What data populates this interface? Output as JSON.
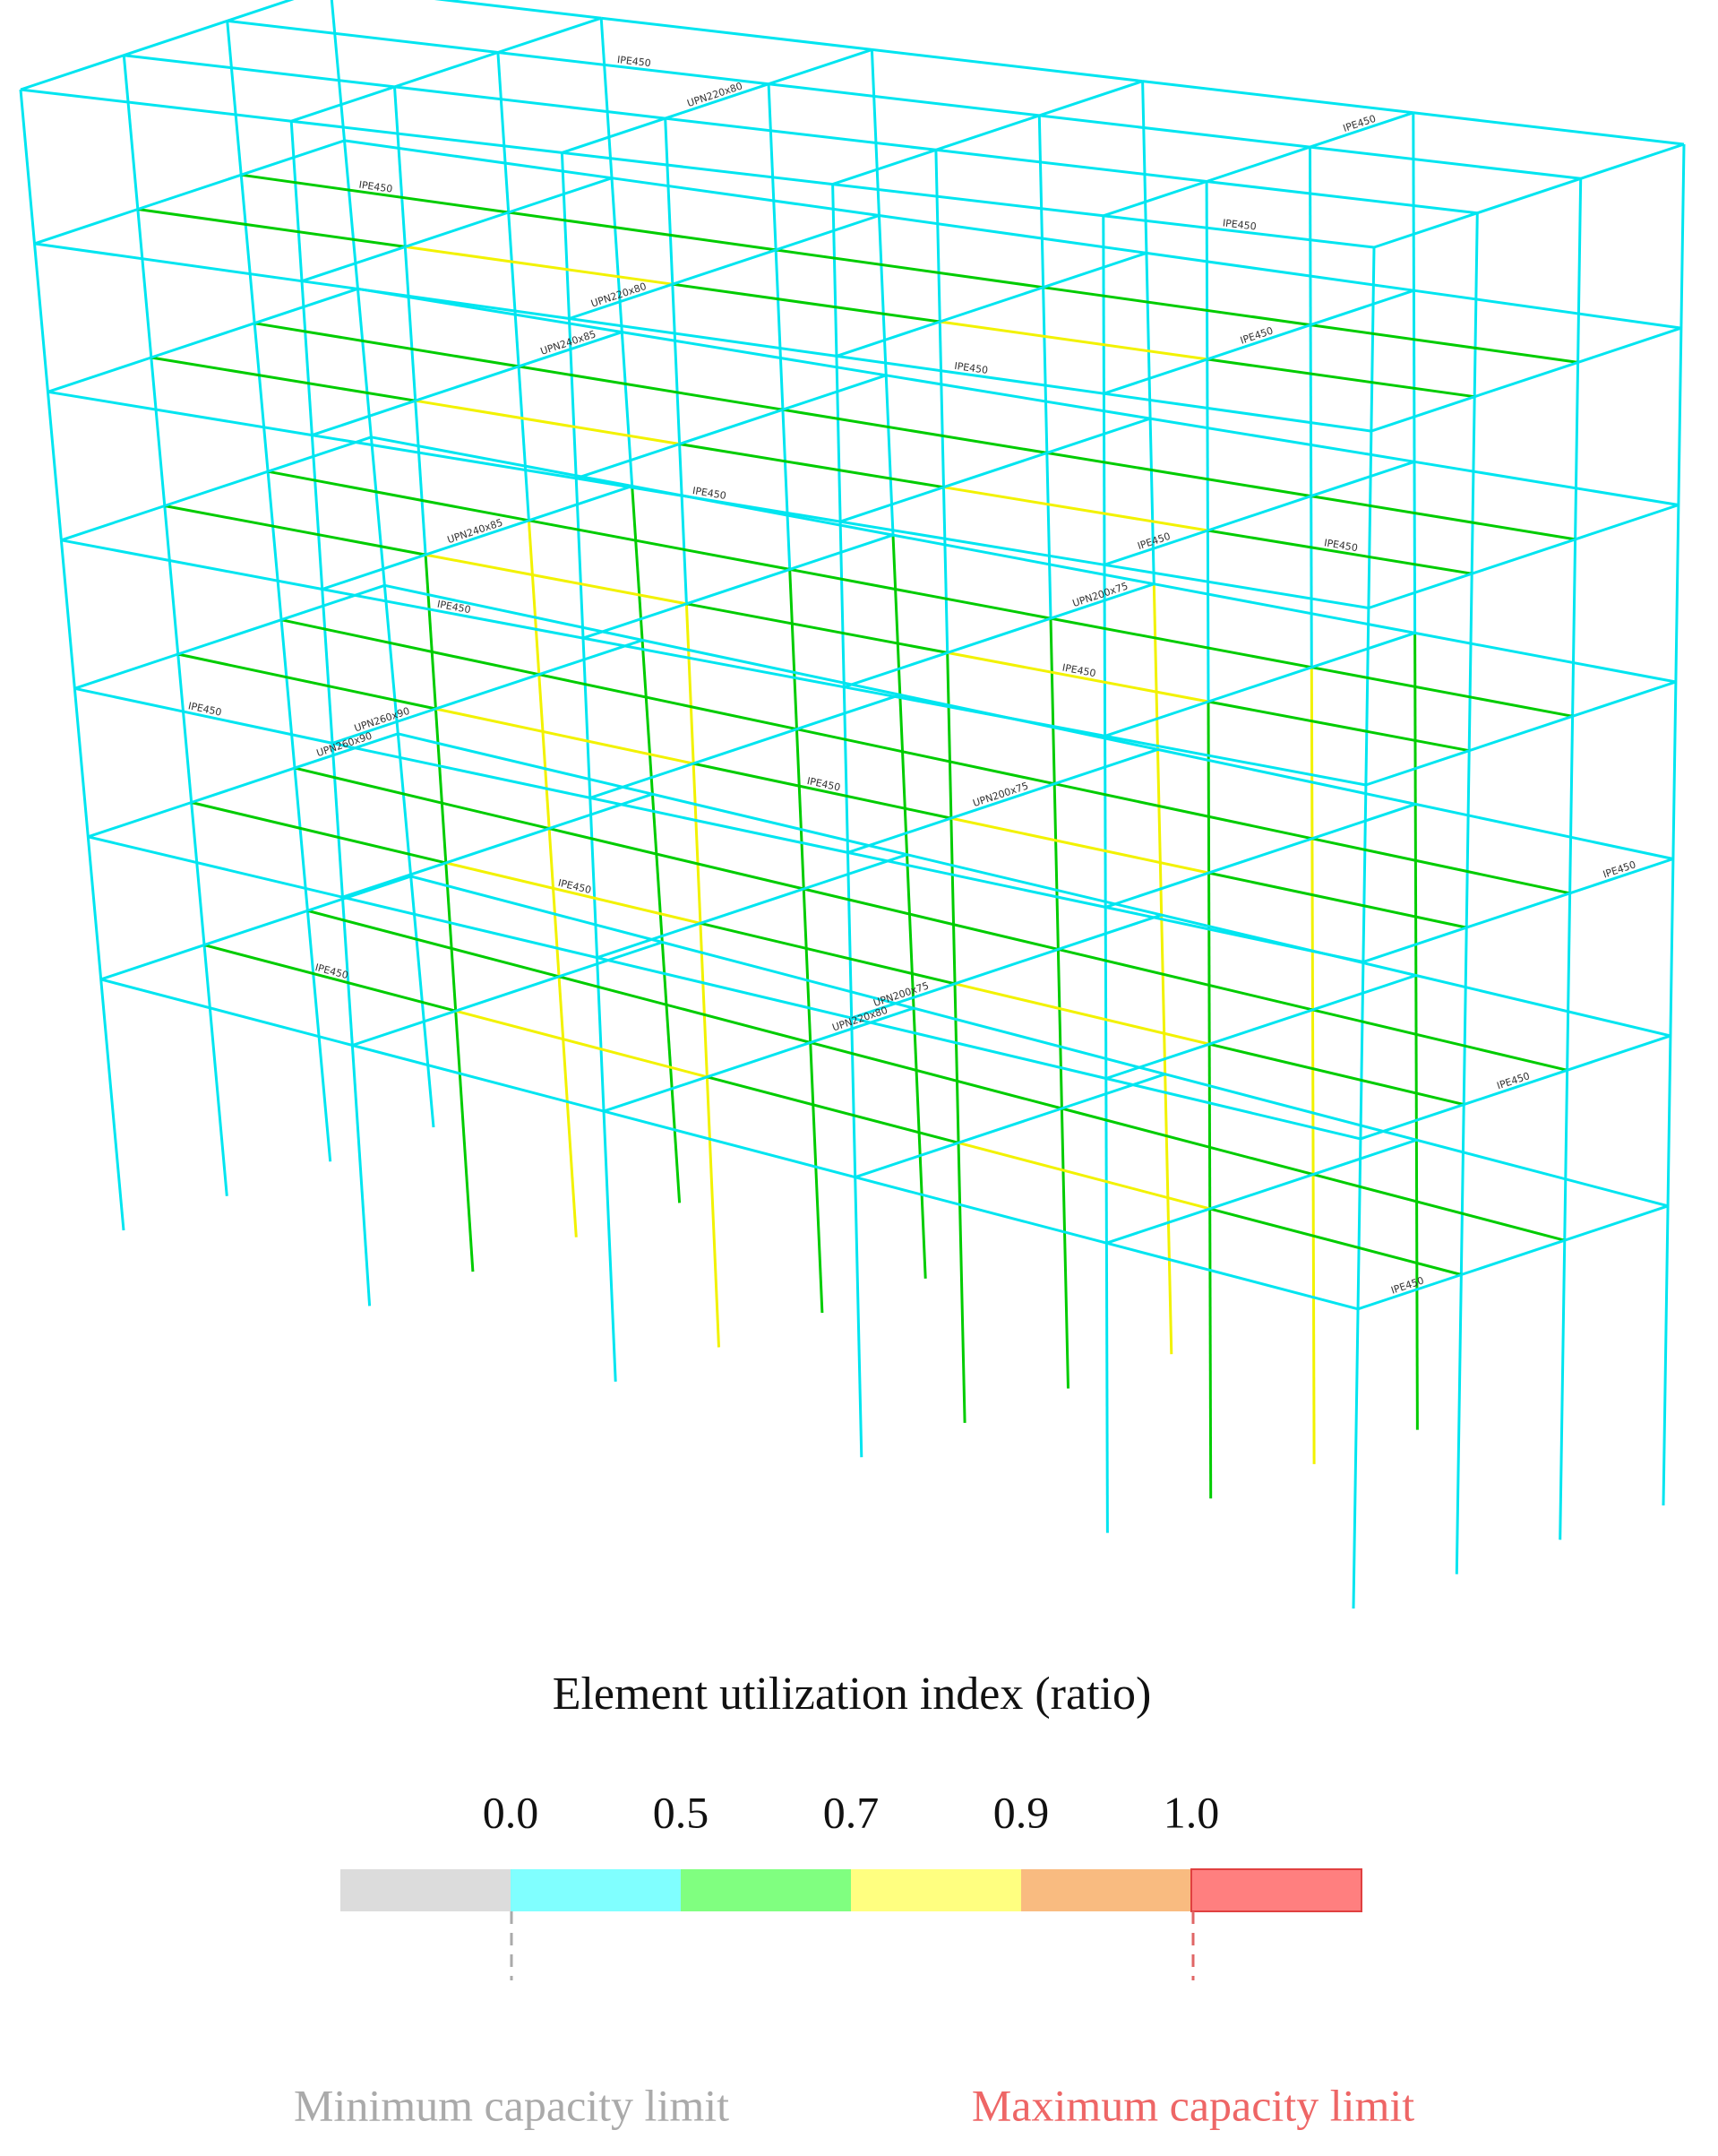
{
  "diagram": {
    "member_labels": [
      "IPE450",
      "IPE450",
      "IPE450",
      "IPE450",
      "IPE450",
      "IPE450",
      "IPE450",
      "IPE450",
      "IPE450",
      "IPE450",
      "IPE450",
      "IPE450",
      "IPE450",
      "IPE450",
      "IPE450",
      "IPE450",
      "IPE450",
      "IPE450",
      "UPN200x75",
      "UPN200x75",
      "UPN200x75",
      "UPN220x80",
      "UPN220x80",
      "UPN220x80",
      "UPN240x85",
      "UPN240x85",
      "UPN260x90",
      "UPN260x90"
    ]
  },
  "legend": {
    "title": "Element utilization index (ratio)",
    "ticks": [
      "0.0",
      "0.5",
      "0.7",
      "0.9",
      "1.0"
    ],
    "colors": [
      "#dcdcdc",
      "#80ffff",
      "#80ff80",
      "#ffff80",
      "#f9bb80",
      "#ff7f7f"
    ],
    "min_label": "Minimum capacity limit",
    "max_label": "Maximum capacity limit"
  }
}
